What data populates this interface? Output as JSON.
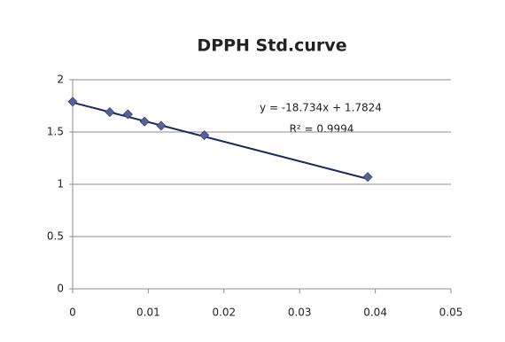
{
  "chart_data": {
    "type": "scatter",
    "title": "DPPH Std.curve",
    "series": [
      {
        "color": "#56609a",
        "x": [
          0,
          0.0049,
          0.0073,
          0.0095,
          0.0117,
          0.0174,
          0.039
        ],
        "values": [
          1.79,
          1.69,
          1.67,
          1.6,
          1.56,
          1.47,
          1.07
        ]
      }
    ],
    "trendline": {
      "slope": -18.734,
      "intercept": 1.7824,
      "color": "#1f2a5c",
      "equation_label": "y = -18.734x + 1.7824",
      "r2_label": "R² = 0.9994"
    },
    "xlim": [
      0,
      0.05
    ],
    "xticks": [
      0,
      0.01,
      0.02,
      0.03,
      0.04,
      0.05
    ],
    "ylim": [
      0,
      2
    ],
    "yticks": [
      0,
      0.5,
      1,
      1.5,
      2
    ],
    "grid": true
  }
}
